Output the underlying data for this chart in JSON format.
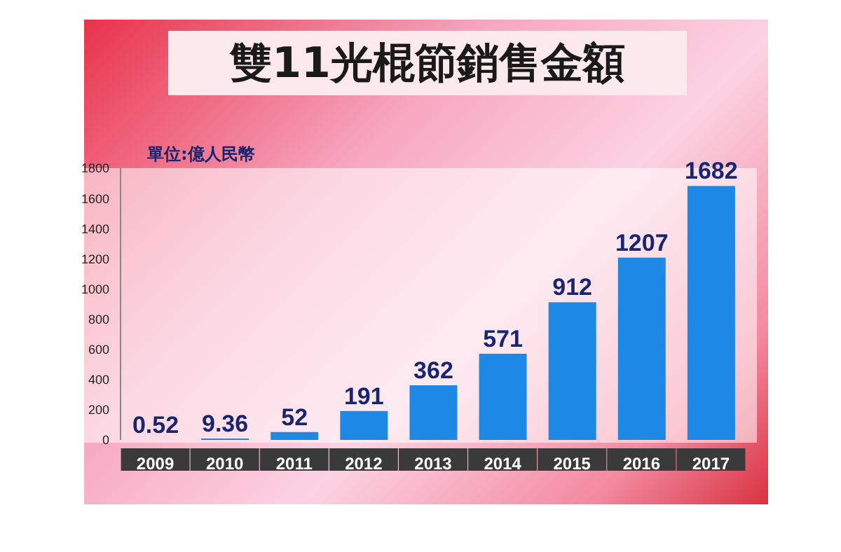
{
  "chart_data": {
    "type": "bar",
    "title": "雙11光棍節銷售金額",
    "ylabel": "單位:億人民幣",
    "categories": [
      "2009",
      "2010",
      "2011",
      "2012",
      "2013",
      "2014",
      "2015",
      "2016",
      "2017"
    ],
    "values": [
      0.52,
      9.36,
      52,
      191,
      362,
      571,
      912,
      1207,
      1682
    ],
    "color": "#1e88e5",
    "ylim": [
      0,
      1800
    ],
    "yticks": [
      0,
      200,
      400,
      600,
      800,
      1000,
      1200,
      1400,
      1600,
      1800
    ],
    "grid": false,
    "data_labels": true
  }
}
